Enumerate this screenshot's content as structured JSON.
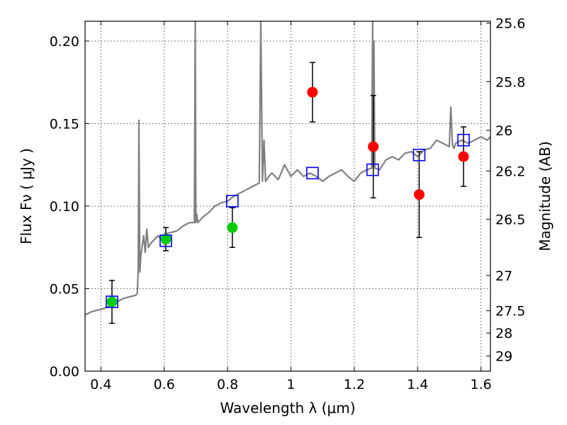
{
  "chart_data": {
    "type": "scatter",
    "xlabel": "Wavelength  λ (μm)",
    "ylabel": "Flux  Fν  ( μJy )",
    "y2label": "Magnitude (AB)",
    "xlim": [
      0.35,
      1.63
    ],
    "ylim": [
      0.0,
      0.212
    ],
    "x_ticks": [
      0.4,
      0.6,
      0.8,
      1.0,
      1.2,
      1.4,
      1.6
    ],
    "x_tick_labels": [
      "0.4",
      "0.6",
      "0.8",
      "1",
      "1.2",
      "1.4",
      "1.6"
    ],
    "y_ticks": [
      0.0,
      0.05,
      0.1,
      0.15,
      0.2
    ],
    "y_tick_labels": [
      "0.00",
      "0.05",
      "0.10",
      "0.15",
      "0.20"
    ],
    "y2_ticks": [
      {
        "label": "25.6",
        "flux": 0.2109
      },
      {
        "label": "25.8",
        "flux": 0.1754
      },
      {
        "label": "26",
        "flux": 0.1459
      },
      {
        "label": "26.2",
        "flux": 0.1213
      },
      {
        "label": "26.5",
        "flux": 0.092
      },
      {
        "label": "27",
        "flux": 0.058
      },
      {
        "label": "27.5",
        "flux": 0.0366
      },
      {
        "label": "28",
        "flux": 0.0231
      },
      {
        "label": "29",
        "flux": 0.0092
      }
    ],
    "grid": true,
    "colors": {
      "model": "#808080",
      "green_points": "#00cc00",
      "red_points": "#ff0000",
      "model_photometry": "#0000ff",
      "errorbars": "#000000"
    },
    "series": [
      {
        "kind": "line",
        "x": [
          0.35,
          0.37,
          0.39,
          0.41,
          0.43,
          0.45,
          0.47,
          0.49,
          0.51,
          0.515,
          0.518,
          0.52,
          0.523,
          0.526,
          0.53,
          0.535,
          0.54,
          0.545,
          0.55,
          0.56,
          0.57,
          0.58,
          0.59,
          0.6,
          0.62,
          0.64,
          0.66,
          0.68,
          0.695,
          0.698,
          0.7,
          0.703,
          0.706,
          0.72,
          0.74,
          0.76,
          0.78,
          0.8,
          0.82,
          0.84,
          0.86,
          0.88,
          0.9,
          0.905,
          0.91,
          0.915,
          0.92,
          0.93,
          0.94,
          0.96,
          0.98,
          1.0,
          1.02,
          1.04,
          1.06,
          1.08,
          1.1,
          1.12,
          1.14,
          1.16,
          1.18,
          1.2,
          1.22,
          1.24,
          1.255,
          1.258,
          1.26,
          1.262,
          1.265,
          1.28,
          1.3,
          1.32,
          1.34,
          1.36,
          1.38,
          1.4,
          1.42,
          1.44,
          1.46,
          1.48,
          1.5,
          1.505,
          1.51,
          1.515,
          1.52,
          1.54,
          1.56,
          1.58,
          1.6,
          1.62,
          1.63
        ],
        "y": [
          0.034,
          0.036,
          0.037,
          0.038,
          0.04,
          0.042,
          0.044,
          0.045,
          0.046,
          0.047,
          0.063,
          0.152,
          0.06,
          0.07,
          0.075,
          0.082,
          0.072,
          0.086,
          0.075,
          0.078,
          0.08,
          0.082,
          0.08,
          0.083,
          0.084,
          0.085,
          0.088,
          0.09,
          0.09,
          0.212,
          0.09,
          0.095,
          0.09,
          0.093,
          0.096,
          0.1,
          0.102,
          0.103,
          0.106,
          0.108,
          0.11,
          0.112,
          0.114,
          0.212,
          0.115,
          0.14,
          0.115,
          0.118,
          0.12,
          0.116,
          0.125,
          0.118,
          0.122,
          0.118,
          0.12,
          0.118,
          0.115,
          0.118,
          0.12,
          0.122,
          0.118,
          0.115,
          0.12,
          0.122,
          0.123,
          0.212,
          0.124,
          0.2,
          0.123,
          0.122,
          0.128,
          0.13,
          0.128,
          0.132,
          0.133,
          0.13,
          0.134,
          0.135,
          0.14,
          0.138,
          0.136,
          0.16,
          0.137,
          0.135,
          0.138,
          0.14,
          0.138,
          0.14,
          0.142,
          0.14,
          0.142
        ]
      },
      {
        "name": "green",
        "kind": "points",
        "points": [
          {
            "x": 0.435,
            "y": 0.042,
            "err": 0.013
          },
          {
            "x": 0.605,
            "y": 0.08,
            "err": 0.007
          },
          {
            "x": 0.815,
            "y": 0.087,
            "err": 0.012
          }
        ]
      },
      {
        "name": "red",
        "kind": "points",
        "points": [
          {
            "x": 1.068,
            "y": 0.169,
            "err": 0.018
          },
          {
            "x": 1.26,
            "y": 0.136,
            "err": 0.031
          },
          {
            "x": 1.405,
            "y": 0.107,
            "err": 0.026
          },
          {
            "x": 1.545,
            "y": 0.13,
            "err": 0.018
          }
        ]
      },
      {
        "name": "model-photometry",
        "kind": "squares",
        "points": [
          {
            "x": 0.435,
            "y": 0.042
          },
          {
            "x": 0.605,
            "y": 0.079
          },
          {
            "x": 0.815,
            "y": 0.103
          },
          {
            "x": 1.068,
            "y": 0.12
          },
          {
            "x": 1.258,
            "y": 0.122
          },
          {
            "x": 1.405,
            "y": 0.131
          },
          {
            "x": 1.545,
            "y": 0.14
          }
        ]
      }
    ]
  }
}
